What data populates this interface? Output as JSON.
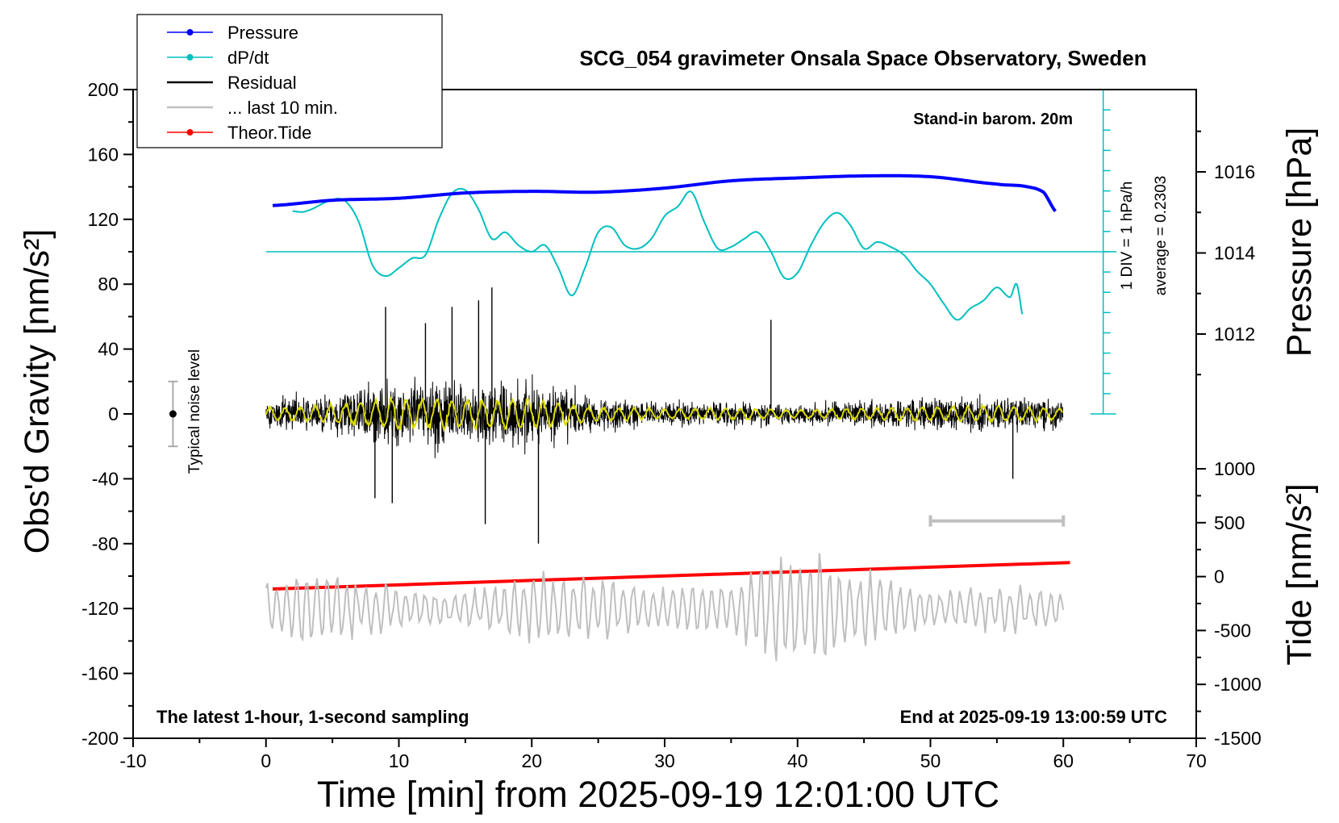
{
  "title": "SCG_054 gravimeter Onsala Space Observatory, Sweden",
  "colors": {
    "pressure": "#0000ff",
    "dpdt": "#00c0c0",
    "residual": "#000000",
    "last10": "#bfbfbf",
    "tide": "#ff0000",
    "smoothed": "#d9d900"
  },
  "chart_data": {
    "type": "line",
    "title": "SCG_054 gravimeter Onsala Space Observatory, Sweden",
    "xlabel": "Time [min] from 2025-09-19 12:01:00 UTC",
    "ylabel_left": "Obs'd Gravity [nm/s²]",
    "ylabel_right_top": "Pressure [hPa]",
    "ylabel_right_bottom": "Tide [nm/s²]",
    "xlim": [
      -10,
      70
    ],
    "ylim": [
      -200,
      200
    ],
    "pressure_lim": [
      1010,
      1018
    ],
    "tide_lim": [
      -1500,
      1500
    ],
    "x_ticks": [
      -10,
      0,
      10,
      20,
      30,
      40,
      50,
      60,
      70
    ],
    "x_tick_labels": [
      "-10",
      "0",
      "10",
      "20",
      "30",
      "40",
      "50",
      "60",
      "70"
    ],
    "y_ticks": [
      200,
      160,
      120,
      80,
      40,
      0,
      -40,
      -80,
      -120,
      -160,
      -200
    ],
    "y_tick_labels": [
      "200",
      "160",
      "120",
      "80",
      "40",
      "0",
      "-40",
      "-80",
      "-120",
      "-160",
      "-200"
    ],
    "pressure_ticks": [
      1016,
      1014,
      1012
    ],
    "pressure_tick_labels": [
      "1016",
      "1014",
      "1012"
    ],
    "tide_ticks": [
      1000,
      500,
      0,
      -500,
      -1000,
      -1500
    ],
    "tide_tick_labels": [
      "1000",
      "500",
      "0",
      "-500",
      "-1000",
      "-1500"
    ],
    "legend": [
      "Pressure",
      "dP/dt",
      "Residual",
      "... last 10 min.",
      "Theor.Tide"
    ],
    "legend_position": "top-left",
    "annotations": {
      "barometer": "Stand-in barom. 20m",
      "dpdt_scale": "1 DIV = 1 hPa/h",
      "dpdt_average": "average = 0.2303",
      "noise": "Typical noise level",
      "sampling": "The latest 1-hour, 1-second sampling",
      "end_time": "End at 2025-09-19 13:00:59 UTC"
    },
    "noise_bar": {
      "x": -7,
      "center": 0,
      "half_range": 20
    },
    "last10_bar": {
      "x_start": 50,
      "x_end": 60,
      "y": -66
    },
    "dpdt_reference": {
      "y_gravity": 100,
      "x_start": 0,
      "x_end": 64
    },
    "dpdt_scale_axis": {
      "x": 63,
      "y_top": 200,
      "y_bottom": 0,
      "div_step": 12.5
    },
    "series": [
      {
        "name": "Pressure",
        "unit": "hPa",
        "x": [
          0.5,
          5,
          10,
          15,
          20,
          25,
          30,
          35,
          40,
          45,
          50,
          55,
          57,
          58.5,
          59.5
        ],
        "values": [
          1015.17,
          1015.3,
          1015.35,
          1015.48,
          1015.52,
          1015.5,
          1015.6,
          1015.78,
          1015.85,
          1015.9,
          1015.88,
          1015.7,
          1015.65,
          1015.5,
          1015.0
        ]
      },
      {
        "name": "dP/dt",
        "unit": "gravity-axis units",
        "x": [
          2,
          3,
          5,
          6,
          7,
          8,
          9,
          10,
          11,
          12,
          13,
          14,
          15,
          16,
          17,
          18,
          19,
          20,
          21,
          22,
          23,
          24,
          25,
          26,
          27,
          28,
          29,
          30,
          31,
          32,
          33,
          34,
          35,
          36,
          37,
          38,
          39,
          40,
          41,
          42,
          43,
          44,
          45,
          46,
          47,
          48,
          49,
          50,
          51,
          52,
          53,
          54,
          55,
          56,
          56.5,
          57
        ],
        "values": [
          125,
          125,
          132,
          131,
          118,
          92,
          85,
          90,
          96,
          98,
          120,
          136,
          138,
          126,
          108,
          112,
          104,
          100,
          104,
          90,
          73,
          90,
          112,
          115,
          104,
          102,
          108,
          122,
          128,
          137,
          118,
          102,
          103,
          108,
          112,
          100,
          84,
          87,
          104,
          118,
          124,
          116,
          102,
          106,
          103,
          98,
          88,
          80,
          68,
          58,
          65,
          70,
          78,
          72,
          80,
          58
        ]
      },
      {
        "name": "Residual",
        "unit": "nm/s²",
        "x": [
          0,
          10,
          20,
          30,
          40,
          50,
          60
        ],
        "values": [
          0,
          0,
          0,
          0,
          0,
          0,
          0
        ],
        "noise_envelope_x": [
          0,
          5,
          10,
          15,
          20,
          25,
          30,
          35,
          40,
          45,
          50,
          55,
          60
        ],
        "noise_envelope": [
          12,
          18,
          32,
          28,
          30,
          14,
          10,
          12,
          8,
          12,
          14,
          16,
          12
        ],
        "spikes_x": [
          8.2,
          9,
          9.5,
          12,
          14,
          16,
          16.5,
          17,
          20.5,
          38,
          56.2
        ],
        "spikes": [
          -52,
          66,
          -55,
          56,
          66,
          70,
          -68,
          78,
          -80,
          58,
          -40
        ]
      },
      {
        "name": "... last 10 min.",
        "unit": "nm/s² (offset -120)",
        "x": [
          0,
          10,
          20,
          30,
          40,
          50,
          60
        ],
        "values": [
          -120,
          -120,
          -120,
          -120,
          -120,
          -120,
          -120
        ],
        "amplitude_x": [
          0,
          5,
          10,
          15,
          20,
          25,
          30,
          35,
          40,
          45,
          50,
          55,
          60
        ],
        "amplitude": [
          15,
          22,
          12,
          10,
          22,
          18,
          12,
          15,
          38,
          22,
          10,
          14,
          12
        ]
      },
      {
        "name": "Theor.Tide",
        "unit": "nm/s²",
        "x": [
          0.5,
          60.5
        ],
        "values": [
          -115,
          130
        ]
      }
    ]
  }
}
